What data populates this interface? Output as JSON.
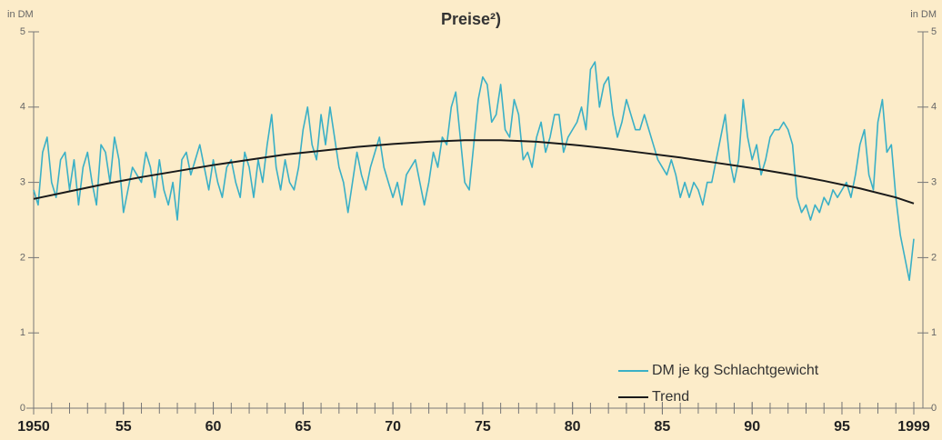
{
  "chart_data": {
    "type": "line",
    "title": "Preise²)",
    "y_label": "in DM",
    "y2_label": "in DM",
    "ylim": [
      0,
      5
    ],
    "yticks": [
      0,
      1,
      2,
      3,
      4,
      5
    ],
    "y2lim": [
      0,
      5
    ],
    "y2ticks": [
      0,
      1,
      2,
      3,
      4,
      5
    ],
    "xlim": [
      1950,
      1999
    ],
    "xticks": [
      {
        "value": 1950,
        "label": "1950"
      },
      {
        "value": 1955,
        "label": "55"
      },
      {
        "value": 1960,
        "label": "60"
      },
      {
        "value": 1965,
        "label": "65"
      },
      {
        "value": 1970,
        "label": "70"
      },
      {
        "value": 1975,
        "label": "75"
      },
      {
        "value": 1980,
        "label": "80"
      },
      {
        "value": 1985,
        "label": "85"
      },
      {
        "value": 1990,
        "label": "90"
      },
      {
        "value": 1995,
        "label": "95"
      },
      {
        "value": 1999,
        "label": "1999"
      }
    ],
    "xminor_ticks": [
      1950,
      1951,
      1952,
      1953,
      1954,
      1955,
      1956,
      1957,
      1958,
      1959,
      1960,
      1961,
      1962,
      1963,
      1964,
      1965,
      1966,
      1967,
      1968,
      1969,
      1970,
      1971,
      1972,
      1973,
      1974,
      1975,
      1976,
      1977,
      1978,
      1979,
      1980,
      1981,
      1982,
      1983,
      1984,
      1985,
      1986,
      1987,
      1988,
      1989,
      1990,
      1991,
      1992,
      1993,
      1994,
      1995,
      1996,
      1997,
      1998,
      1999
    ],
    "legend": "lower-right",
    "series": [
      {
        "name": "DM je kg Schlachtgewicht",
        "color": "#3ab0c6",
        "x": [
          1950,
          1950.25,
          1950.5,
          1950.75,
          1951,
          1951.25,
          1951.5,
          1951.75,
          1952,
          1952.25,
          1952.5,
          1952.75,
          1953,
          1953.25,
          1953.5,
          1953.75,
          1954,
          1954.25,
          1954.5,
          1954.75,
          1955,
          1955.25,
          1955.5,
          1955.75,
          1956,
          1956.25,
          1956.5,
          1956.75,
          1957,
          1957.25,
          1957.5,
          1957.75,
          1958,
          1958.25,
          1958.5,
          1958.75,
          1959,
          1959.25,
          1959.5,
          1959.75,
          1960,
          1960.25,
          1960.5,
          1960.75,
          1961,
          1961.25,
          1961.5,
          1961.75,
          1962,
          1962.25,
          1962.5,
          1962.75,
          1963,
          1963.25,
          1963.5,
          1963.75,
          1964,
          1964.25,
          1964.5,
          1964.75,
          1965,
          1965.25,
          1965.5,
          1965.75,
          1966,
          1966.25,
          1966.5,
          1966.75,
          1967,
          1967.25,
          1967.5,
          1967.75,
          1968,
          1968.25,
          1968.5,
          1968.75,
          1969,
          1969.25,
          1969.5,
          1969.75,
          1970,
          1970.25,
          1970.5,
          1970.75,
          1971,
          1971.25,
          1971.5,
          1971.75,
          1972,
          1972.25,
          1972.5,
          1972.75,
          1973,
          1973.25,
          1973.5,
          1973.75,
          1974,
          1974.25,
          1974.5,
          1974.75,
          1975,
          1975.25,
          1975.5,
          1975.75,
          1976,
          1976.25,
          1976.5,
          1976.75,
          1977,
          1977.25,
          1977.5,
          1977.75,
          1978,
          1978.25,
          1978.5,
          1978.75,
          1979,
          1979.25,
          1979.5,
          1979.75,
          1980,
          1980.25,
          1980.5,
          1980.75,
          1981,
          1981.25,
          1981.5,
          1981.75,
          1982,
          1982.25,
          1982.5,
          1982.75,
          1983,
          1983.25,
          1983.5,
          1983.75,
          1984,
          1984.25,
          1984.5,
          1984.75,
          1985,
          1985.25,
          1985.5,
          1985.75,
          1986,
          1986.25,
          1986.5,
          1986.75,
          1987,
          1987.25,
          1987.5,
          1987.75,
          1988,
          1988.25,
          1988.5,
          1988.75,
          1989,
          1989.25,
          1989.5,
          1989.75,
          1990,
          1990.25,
          1990.5,
          1990.75,
          1991,
          1991.25,
          1991.5,
          1991.75,
          1992,
          1992.25,
          1992.5,
          1992.75,
          1993,
          1993.25,
          1993.5,
          1993.75,
          1994,
          1994.25,
          1994.5,
          1994.75,
          1995,
          1995.25,
          1995.5,
          1995.75,
          1996,
          1996.25,
          1996.5,
          1996.75,
          1997,
          1997.25,
          1997.5,
          1997.75,
          1998,
          1998.25,
          1998.5,
          1998.75,
          1999
        ],
        "values": [
          2.9,
          2.7,
          3.4,
          3.6,
          3.0,
          2.8,
          3.3,
          3.4,
          2.9,
          3.3,
          2.7,
          3.2,
          3.4,
          3.0,
          2.7,
          3.5,
          3.4,
          3.0,
          3.6,
          3.3,
          2.6,
          2.9,
          3.2,
          3.1,
          3.0,
          3.4,
          3.2,
          2.8,
          3.3,
          2.9,
          2.7,
          3.0,
          2.5,
          3.3,
          3.4,
          3.1,
          3.3,
          3.5,
          3.2,
          2.9,
          3.3,
          3.0,
          2.8,
          3.2,
          3.3,
          3.0,
          2.8,
          3.4,
          3.2,
          2.8,
          3.3,
          3.0,
          3.5,
          3.9,
          3.2,
          2.9,
          3.3,
          3.0,
          2.9,
          3.2,
          3.7,
          4.0,
          3.5,
          3.3,
          3.9,
          3.5,
          4.0,
          3.6,
          3.2,
          3.0,
          2.6,
          3.0,
          3.4,
          3.1,
          2.9,
          3.2,
          3.4,
          3.6,
          3.2,
          3.0,
          2.8,
          3.0,
          2.7,
          3.1,
          3.2,
          3.3,
          3.0,
          2.7,
          3.0,
          3.4,
          3.2,
          3.6,
          3.5,
          4.0,
          4.2,
          3.6,
          3.0,
          2.9,
          3.5,
          4.1,
          4.4,
          4.3,
          3.8,
          3.9,
          4.3,
          3.7,
          3.6,
          4.1,
          3.9,
          3.3,
          3.4,
          3.2,
          3.6,
          3.8,
          3.4,
          3.6,
          3.9,
          3.9,
          3.4,
          3.6,
          3.7,
          3.8,
          4.0,
          3.7,
          4.5,
          4.6,
          4.0,
          4.3,
          4.4,
          3.9,
          3.6,
          3.8,
          4.1,
          3.9,
          3.7,
          3.7,
          3.9,
          3.7,
          3.5,
          3.3,
          3.2,
          3.1,
          3.3,
          3.1,
          2.8,
          3.0,
          2.8,
          3.0,
          2.9,
          2.7,
          3.0,
          3.0,
          3.3,
          3.6,
          3.9,
          3.3,
          3.0,
          3.3,
          4.1,
          3.6,
          3.3,
          3.5,
          3.1,
          3.3,
          3.6,
          3.7,
          3.7,
          3.8,
          3.7,
          3.5,
          2.8,
          2.6,
          2.7,
          2.5,
          2.7,
          2.6,
          2.8,
          2.7,
          2.9,
          2.8,
          2.9,
          3.0,
          2.8,
          3.1,
          3.5,
          3.7,
          3.1,
          2.9,
          3.8,
          4.1,
          3.4,
          3.5,
          2.8,
          2.3,
          2.0,
          1.7,
          2.25
        ]
      },
      {
        "name": "Trend",
        "color": "#1a1a1a",
        "x": [
          1950,
          1952,
          1954,
          1956,
          1958,
          1960,
          1962,
          1964,
          1966,
          1968,
          1970,
          1972,
          1974,
          1976,
          1978,
          1980,
          1982,
          1984,
          1986,
          1988,
          1990,
          1992,
          1994,
          1996,
          1998,
          1999
        ],
        "values": [
          2.78,
          2.88,
          2.98,
          3.07,
          3.15,
          3.23,
          3.3,
          3.37,
          3.42,
          3.47,
          3.51,
          3.54,
          3.56,
          3.56,
          3.54,
          3.5,
          3.45,
          3.39,
          3.33,
          3.26,
          3.19,
          3.11,
          3.02,
          2.92,
          2.8,
          2.72
        ]
      }
    ]
  }
}
